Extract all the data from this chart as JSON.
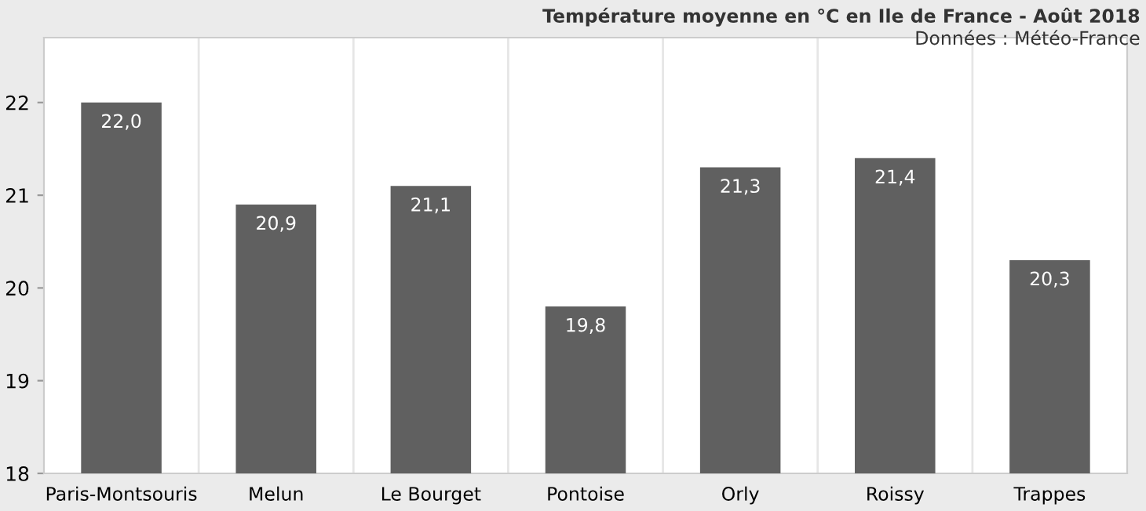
{
  "chart_data": {
    "type": "bar",
    "title": "Température moyenne en °C en Ile de France - Août 2018",
    "annotations": [
      "Données : Météo-France"
    ],
    "categories": [
      "Paris-Montsouris",
      "Melun",
      "Le Bourget",
      "Pontoise",
      "Orly",
      "Roissy",
      "Trappes"
    ],
    "values": [
      22.0,
      20.9,
      21.1,
      19.8,
      21.3,
      21.4,
      20.3
    ],
    "value_labels": [
      "22,0",
      "20,9",
      "21,1",
      "19,8",
      "21,3",
      "21,4",
      "20,3"
    ],
    "color": "#606060",
    "ylim": [
      18,
      22.7
    ],
    "yticks": [
      18,
      19,
      20,
      21,
      22
    ],
    "grid": "x"
  }
}
